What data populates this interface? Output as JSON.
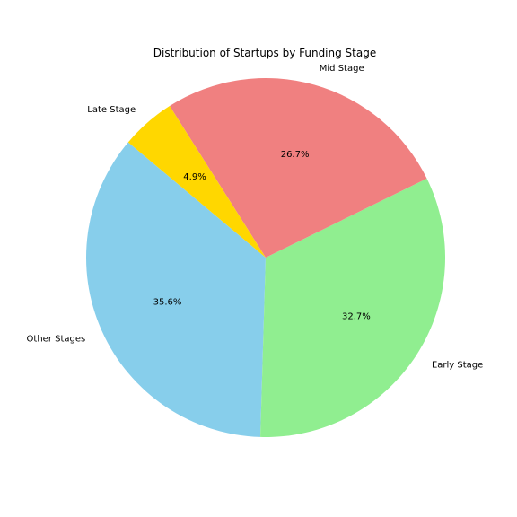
{
  "chart_data": {
    "type": "pie",
    "title": "Distribution of Startups by Funding Stage",
    "start_angle_deg": 140,
    "direction": "counterclockwise",
    "slices": [
      {
        "label": "Other Stages",
        "value": 35.6,
        "pct_label": "35.6%",
        "color": "#87CEEB"
      },
      {
        "label": "Early Stage",
        "value": 32.7,
        "pct_label": "32.7%",
        "color": "#90EE90"
      },
      {
        "label": "Mid Stage",
        "value": 26.7,
        "pct_label": "26.7%",
        "color": "#F08080"
      },
      {
        "label": "Late Stage",
        "value": 4.9,
        "pct_label": "4.9%",
        "color": "#FFD700"
      }
    ]
  }
}
